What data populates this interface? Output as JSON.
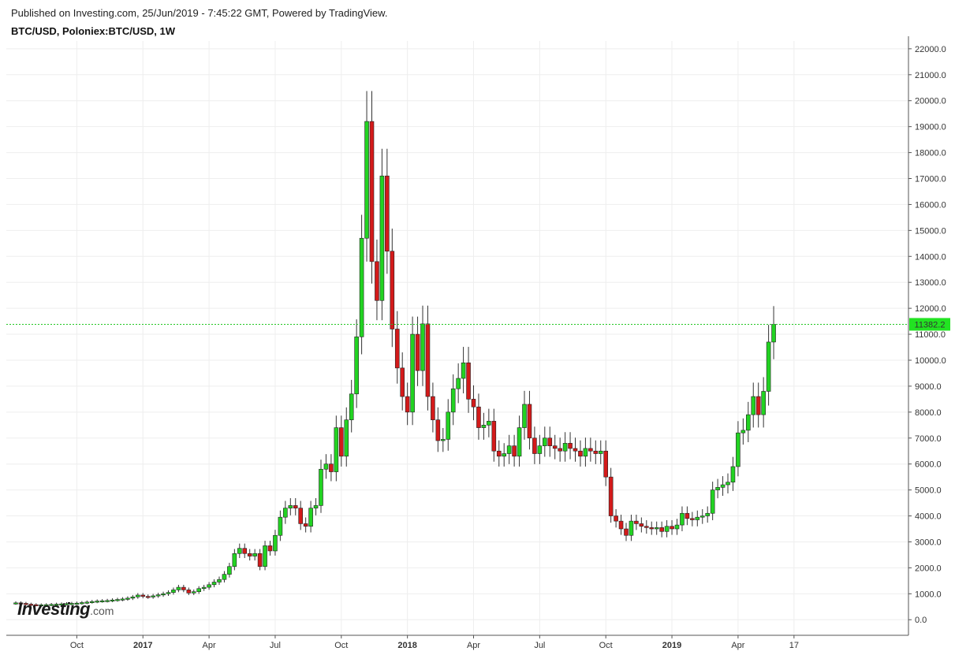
{
  "header": {
    "published": "Published on Investing.com, 25/Jun/2019 - 7:45:22 GMT, Powered by TradingView.",
    "symbol": "BTC/USD, Poloniex:BTC/USD, 1W"
  },
  "logo": {
    "main": "Investing",
    "suffix": ".com"
  },
  "colors": {
    "up": "#22d322",
    "down": "#d31a1a",
    "grid": "#eeeeee",
    "price_line": "#22c622",
    "price_tag": "#22e322"
  },
  "chart_data": {
    "type": "candlestick",
    "title": "",
    "timeframe": "1W",
    "last_price": 11382.2,
    "last_price_label": "11382.2",
    "ylim": [
      -600,
      22300
    ],
    "y_ticks": [
      0,
      1000,
      2000,
      3000,
      4000,
      5000,
      6000,
      7000,
      8000,
      9000,
      10000,
      11000,
      12000,
      13000,
      14000,
      15000,
      16000,
      17000,
      18000,
      19000,
      20000,
      21000,
      22000
    ],
    "y_tick_labels": [
      "0.0",
      "1000.0",
      "2000.0",
      "3000.0",
      "4000.0",
      "5000.0",
      "6000.0",
      "7000.0",
      "8000.0",
      "9000.0",
      "10000.0",
      "11000.0",
      "12000.0",
      "13000.0",
      "14000.0",
      "15000.0",
      "16000.0",
      "17000.0",
      "18000.0",
      "19000.0",
      "20000.0",
      "21000.0",
      "22000.0"
    ],
    "x_ticks": [
      {
        "label": "Oct",
        "index": 12,
        "bold": false
      },
      {
        "label": "2017",
        "index": 25,
        "bold": true
      },
      {
        "label": "Apr",
        "index": 38,
        "bold": false
      },
      {
        "label": "Jul",
        "index": 51,
        "bold": false
      },
      {
        "label": "Oct",
        "index": 64,
        "bold": false
      },
      {
        "label": "2018",
        "index": 77,
        "bold": true
      },
      {
        "label": "Apr",
        "index": 90,
        "bold": false
      },
      {
        "label": "Jul",
        "index": 103,
        "bold": false
      },
      {
        "label": "Oct",
        "index": 116,
        "bold": false
      },
      {
        "label": "2019",
        "index": 129,
        "bold": true
      },
      {
        "label": "Apr",
        "index": 142,
        "bold": false
      },
      {
        "label": "17",
        "index": 153,
        "bold": false
      }
    ],
    "closes": [
      650,
      630,
      600,
      580,
      570,
      575,
      580,
      590,
      600,
      610,
      620,
      630,
      640,
      660,
      680,
      700,
      720,
      730,
      740,
      760,
      780,
      800,
      830,
      880,
      950,
      900,
      880,
      920,
      960,
      1000,
      1050,
      1150,
      1250,
      1150,
      1030,
      1080,
      1200,
      1250,
      1350,
      1450,
      1550,
      1750,
      2050,
      2550,
      2750,
      2550,
      2450,
      2550,
      2050,
      2850,
      2650,
      3250,
      3950,
      4300,
      4400,
      4300,
      3700,
      3600,
      4300,
      4400,
      5800,
      6000,
      5700,
      7400,
      6300,
      7700,
      8700,
      10900,
      14700,
      19200,
      13800,
      12300,
      17100,
      14200,
      11200,
      9700,
      8600,
      8000,
      11000,
      9600,
      11400,
      8600,
      7700,
      6900,
      6950,
      8000,
      8900,
      9300,
      9900,
      8500,
      8200,
      7400,
      7500,
      7650,
      6500,
      6300,
      6400,
      6700,
      6300,
      7400,
      8300,
      7000,
      6400,
      6700,
      7000,
      6700,
      6600,
      6500,
      6800,
      6600,
      6500,
      6300,
      6600,
      6500,
      6400,
      6500,
      5500,
      4000,
      3800,
      3500,
      3250,
      3800,
      3700,
      3600,
      3550,
      3500,
      3550,
      3400,
      3600,
      3500,
      3650,
      4100,
      3900,
      3850,
      3950,
      4000,
      4100,
      5000,
      5100,
      5200,
      5300,
      5900,
      7200,
      7300,
      7900,
      8600,
      7900,
      8800,
      10700,
      11382
    ]
  }
}
